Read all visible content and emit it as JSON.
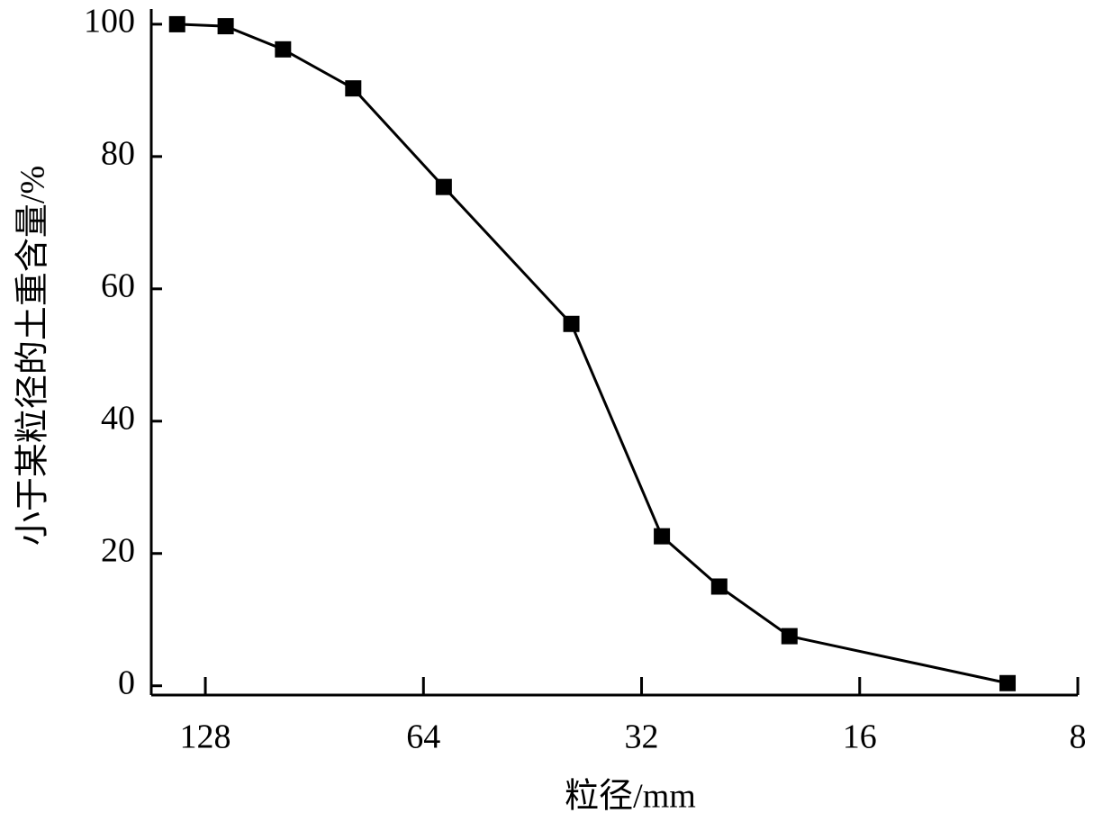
{
  "chart_data": {
    "type": "line",
    "x_label": "粒径/mm",
    "y_label": "小于某粒径的土重含量/%",
    "x": [
      140,
      120,
      100,
      80,
      60,
      40,
      30,
      25,
      20,
      10
    ],
    "series": [
      {
        "color": "#000000",
        "values": [
          100,
          99.7,
          96.2,
          90.3,
          75.4,
          54.7,
          22.6,
          15.0,
          7.5,
          0.4
        ]
      }
    ],
    "xlim": [
      152,
      8
    ],
    "xticks": [
      128,
      64,
      32,
      16,
      8
    ],
    "log_x": true,
    "ylim": [
      -1.4,
      102.3
    ],
    "yticks": [
      0,
      20,
      40,
      60,
      80,
      100
    ],
    "grid": false
  }
}
